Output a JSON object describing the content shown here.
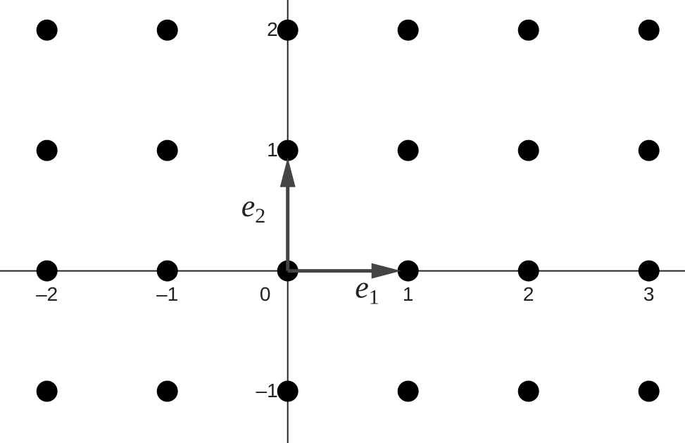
{
  "chart_data": {
    "type": "scatter",
    "x": [
      -2,
      -1,
      0,
      1,
      2,
      3,
      -2,
      -1,
      0,
      1,
      2,
      3,
      -2,
      -1,
      0,
      1,
      2,
      3,
      -2,
      -1,
      0,
      1,
      2,
      3
    ],
    "values": [
      2,
      2,
      2,
      2,
      2,
      2,
      1,
      1,
      1,
      1,
      1,
      1,
      0,
      0,
      0,
      0,
      0,
      0,
      -1,
      -1,
      -1,
      -1,
      -1,
      -1
    ],
    "color": "#000000",
    "xlim": [
      -2.39,
      3.3
    ],
    "ylim": [
      -1.43,
      2.25
    ],
    "xticks": [
      {
        "value": -2,
        "label": "–2"
      },
      {
        "value": -1,
        "label": "–1"
      },
      0,
      1,
      2,
      3
    ],
    "yticks": [
      {
        "value": -1,
        "label": "–1"
      },
      1,
      2
    ],
    "vectors": [
      {
        "text": "e",
        "subscript": "1",
        "x": [
          0,
          1
        ],
        "y": [
          0,
          0
        ]
      },
      {
        "text": "e",
        "subscript": "2",
        "x": [
          0,
          0
        ],
        "y": [
          0,
          1
        ]
      }
    ],
    "vector_color": "#444444"
  }
}
